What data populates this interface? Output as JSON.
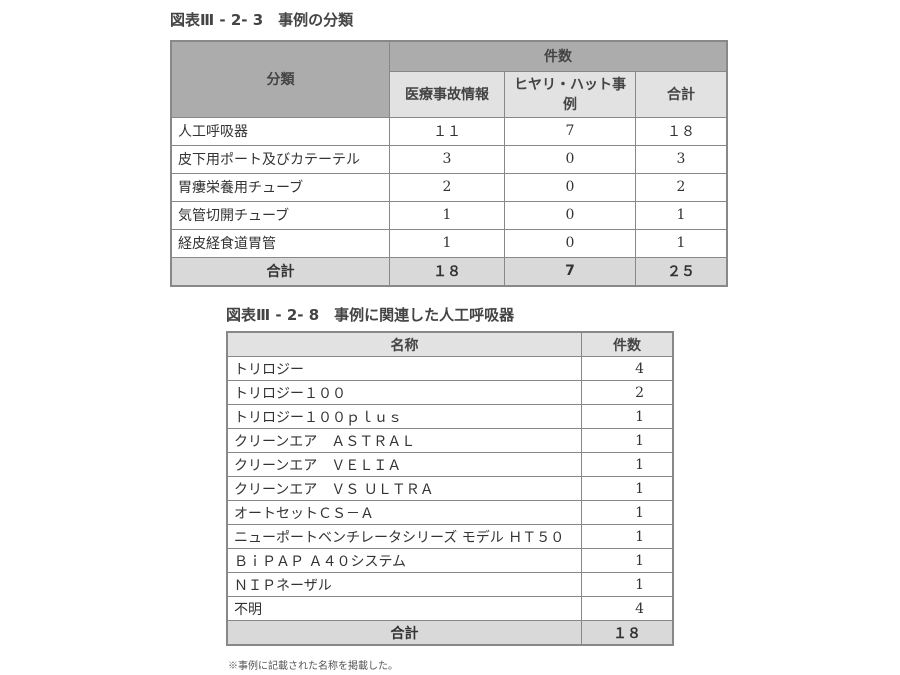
{
  "table1": {
    "title": "図表Ⅲ - 2- 3　事例の分類",
    "header": {
      "category": "分類",
      "count_group": "件数",
      "col1": "医療事故情報",
      "col2": "ヒヤリ・ハット事例",
      "col3": "合計"
    },
    "rows": [
      {
        "name": "人工呼吸器",
        "accident": "１１",
        "near_miss": "7",
        "total": "１８"
      },
      {
        "name": "皮下用ポート及びカテーテル",
        "accident": "3",
        "near_miss": "0",
        "total": "3"
      },
      {
        "name": "胃瘻栄養用チューブ",
        "accident": "2",
        "near_miss": "0",
        "total": "2"
      },
      {
        "name": "気管切開チューブ",
        "accident": "1",
        "near_miss": "0",
        "total": "1"
      },
      {
        "name": "経皮経食道胃管",
        "accident": "1",
        "near_miss": "0",
        "total": "1"
      }
    ],
    "total": {
      "label": "合計",
      "accident": "１８",
      "near_miss": "7",
      "total": "２５"
    }
  },
  "table2": {
    "title": "図表Ⅲ - 2- 8　事例に関連した人工呼吸器",
    "header": {
      "name": "名称",
      "count": "件数"
    },
    "rows": [
      {
        "name": "トリロジー",
        "count": "4"
      },
      {
        "name": "トリロジー１００",
        "count": "2"
      },
      {
        "name": "トリロジー１００ｐｌｕｓ",
        "count": "1"
      },
      {
        "name": "クリーンエア　ＡＳＴＲＡＬ",
        "count": "1"
      },
      {
        "name": "クリーンエア　ＶＥＬＩＡ",
        "count": "1"
      },
      {
        "name": "クリーンエア　ＶＳ ＵＬＴＲＡ",
        "count": "1"
      },
      {
        "name": "オートセットＣＳ－Ａ",
        "count": "1"
      },
      {
        "name": "ニューポートベンチレータシリーズ モデル ＨＴ５０",
        "count": "1"
      },
      {
        "name": "ＢｉＰＡＰ Ａ４０システム",
        "count": "1"
      },
      {
        "name": "ＮＩＰネーザル",
        "count": "1"
      },
      {
        "name": "不明",
        "count": "4"
      }
    ],
    "total": {
      "label": "合計",
      "count": "１８"
    },
    "footnote": "※事例に記載された名称を掲載した。"
  }
}
